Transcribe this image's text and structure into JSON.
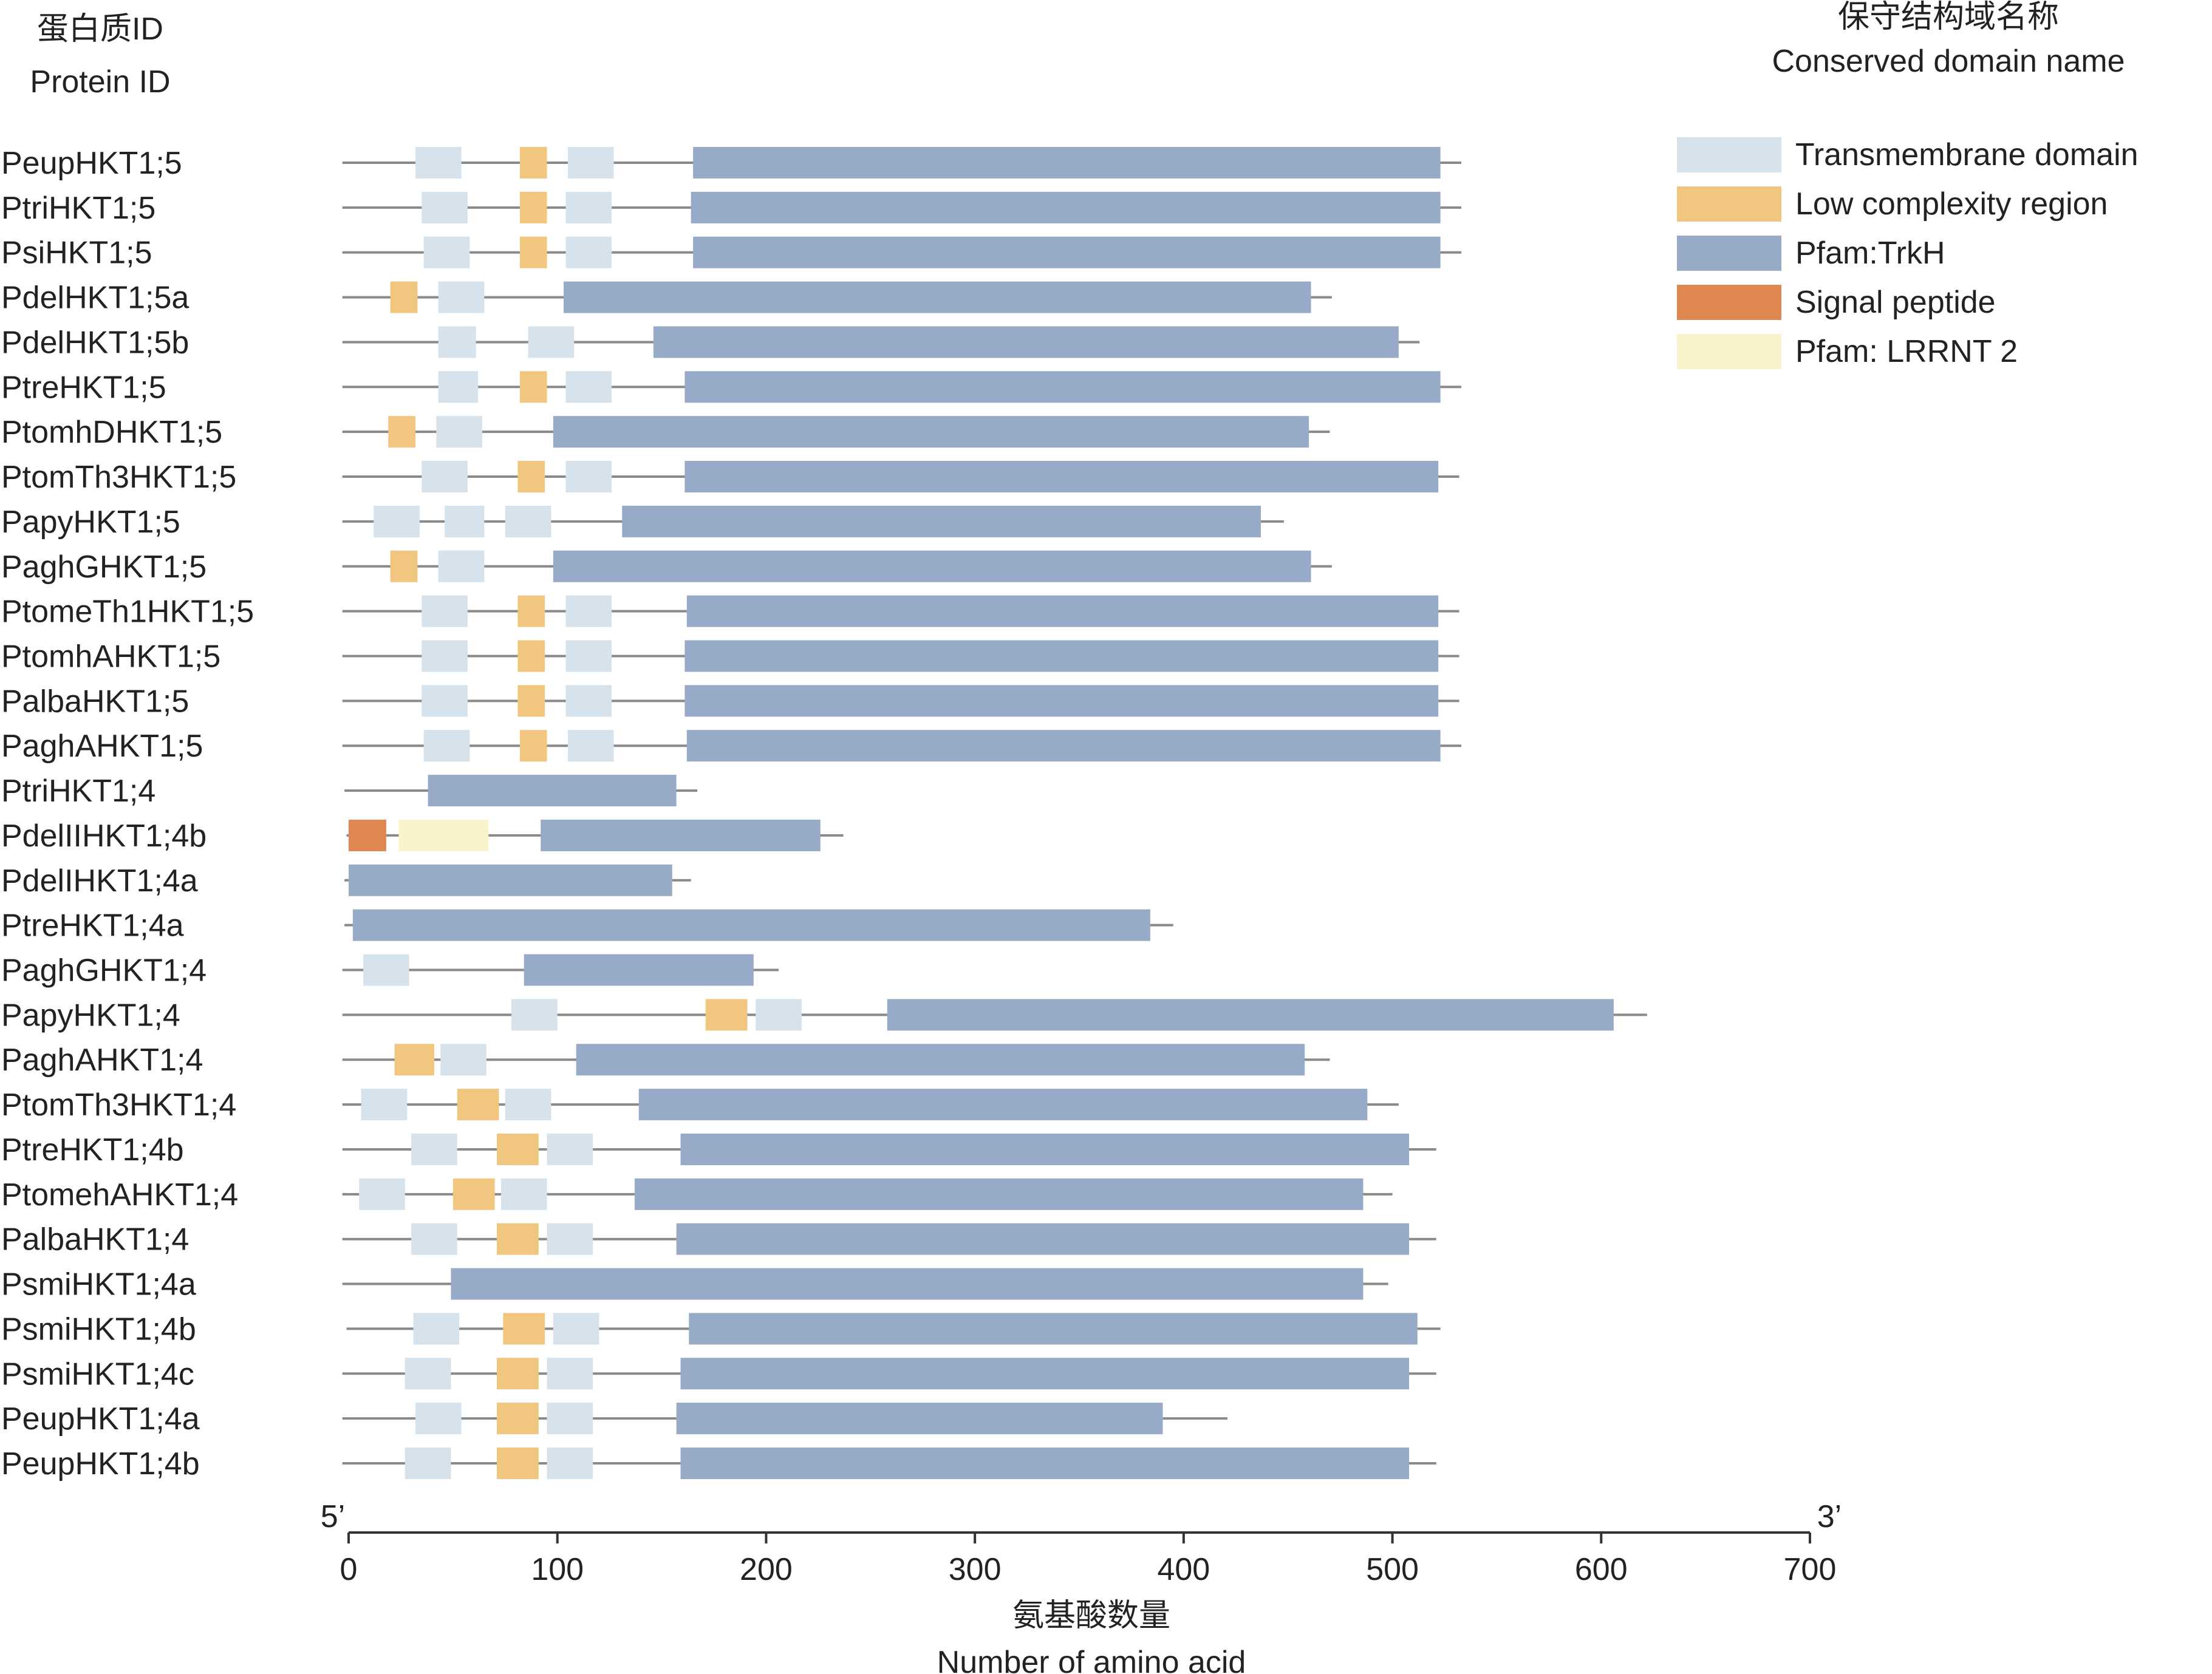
{
  "header": {
    "protein_id_zh": "蛋白质ID",
    "protein_id_en": "Protein ID",
    "domain_name_zh": "保守结构域名称",
    "domain_name_en": "Conserved domain name"
  },
  "legend": [
    {
      "key": "tm",
      "label": "Transmembrane domain",
      "color": "#d6e2ec"
    },
    {
      "key": "lcr",
      "label": "Low complexity region",
      "color": "#f1c67f"
    },
    {
      "key": "trkh",
      "label": "Pfam:TrkH",
      "color": "#97abc9"
    },
    {
      "key": "sig",
      "label": "Signal peptide",
      "color": "#df8751"
    },
    {
      "key": "lrr",
      "label": "Pfam: LRRNT 2",
      "color": "#f8f3cb"
    }
  ],
  "axis": {
    "min": 0,
    "max": 700,
    "ticks": [
      0,
      100,
      200,
      300,
      400,
      500,
      600,
      700
    ],
    "left_end_label": "5’",
    "right_end_label": "3’",
    "label_zh": "氨基酸数量",
    "label_en": "Number of amino acid"
  },
  "proteins": [
    {
      "id": "PeupHKT1;5",
      "start": -3,
      "length": 533,
      "domains": [
        {
          "t": "tm",
          "s": 32,
          "e": 54
        },
        {
          "t": "lcr",
          "s": 82,
          "e": 95
        },
        {
          "t": "tm",
          "s": 105,
          "e": 127
        },
        {
          "t": "trkh",
          "s": 165,
          "e": 523
        }
      ]
    },
    {
      "id": "PtriHKT1;5",
      "start": -3,
      "length": 533,
      "domains": [
        {
          "t": "tm",
          "s": 35,
          "e": 57
        },
        {
          "t": "lcr",
          "s": 82,
          "e": 95
        },
        {
          "t": "tm",
          "s": 104,
          "e": 126
        },
        {
          "t": "trkh",
          "s": 164,
          "e": 523
        }
      ]
    },
    {
      "id": "PsiHKT1;5",
      "start": -3,
      "length": 533,
      "domains": [
        {
          "t": "tm",
          "s": 36,
          "e": 58
        },
        {
          "t": "lcr",
          "s": 82,
          "e": 95
        },
        {
          "t": "tm",
          "s": 104,
          "e": 126
        },
        {
          "t": "trkh",
          "s": 165,
          "e": 523
        }
      ]
    },
    {
      "id": "PdelHKT1;5a",
      "start": -3,
      "length": 471,
      "domains": [
        {
          "t": "lcr",
          "s": 20,
          "e": 33
        },
        {
          "t": "tm",
          "s": 43,
          "e": 65
        },
        {
          "t": "trkh",
          "s": 103,
          "e": 461
        }
      ]
    },
    {
      "id": "PdelHKT1;5b",
      "start": -3,
      "length": 513,
      "domains": [
        {
          "t": "tm",
          "s": 43,
          "e": 61
        },
        {
          "t": "tm",
          "s": 86,
          "e": 108
        },
        {
          "t": "trkh",
          "s": 146,
          "e": 503
        }
      ]
    },
    {
      "id": "PtreHKT1;5",
      "start": -3,
      "length": 533,
      "domains": [
        {
          "t": "tm",
          "s": 43,
          "e": 62
        },
        {
          "t": "lcr",
          "s": 82,
          "e": 95
        },
        {
          "t": "tm",
          "s": 104,
          "e": 126
        },
        {
          "t": "trkh",
          "s": 161,
          "e": 523
        }
      ]
    },
    {
      "id": "PtomhDHKT1;5",
      "start": -3,
      "length": 470,
      "domains": [
        {
          "t": "lcr",
          "s": 19,
          "e": 32
        },
        {
          "t": "tm",
          "s": 42,
          "e": 64
        },
        {
          "t": "trkh",
          "s": 98,
          "e": 460
        }
      ]
    },
    {
      "id": "PtomTh3HKT1;5",
      "start": -3,
      "length": 532,
      "domains": [
        {
          "t": "tm",
          "s": 35,
          "e": 57
        },
        {
          "t": "lcr",
          "s": 81,
          "e": 94
        },
        {
          "t": "tm",
          "s": 104,
          "e": 126
        },
        {
          "t": "trkh",
          "s": 161,
          "e": 522
        }
      ]
    },
    {
      "id": "PapyHKT1;5",
      "start": -3,
      "length": 448,
      "domains": [
        {
          "t": "tm",
          "s": 12,
          "e": 34
        },
        {
          "t": "tm",
          "s": 46,
          "e": 65
        },
        {
          "t": "tm",
          "s": 75,
          "e": 97
        },
        {
          "t": "trkh",
          "s": 131,
          "e": 437
        }
      ]
    },
    {
      "id": "PaghGHKT1;5",
      "start": -3,
      "length": 471,
      "domains": [
        {
          "t": "lcr",
          "s": 20,
          "e": 33
        },
        {
          "t": "tm",
          "s": 43,
          "e": 65
        },
        {
          "t": "trkh",
          "s": 98,
          "e": 461
        }
      ]
    },
    {
      "id": "PtomeTh1HKT1;5",
      "start": -3,
      "length": 532,
      "domains": [
        {
          "t": "tm",
          "s": 35,
          "e": 57
        },
        {
          "t": "lcr",
          "s": 81,
          "e": 94
        },
        {
          "t": "tm",
          "s": 104,
          "e": 126
        },
        {
          "t": "trkh",
          "s": 162,
          "e": 522
        }
      ]
    },
    {
      "id": "PtomhAHKT1;5",
      "start": -3,
      "length": 532,
      "domains": [
        {
          "t": "tm",
          "s": 35,
          "e": 57
        },
        {
          "t": "lcr",
          "s": 81,
          "e": 94
        },
        {
          "t": "tm",
          "s": 104,
          "e": 126
        },
        {
          "t": "trkh",
          "s": 161,
          "e": 522
        }
      ]
    },
    {
      "id": "PalbaHKT1;5",
      "start": -3,
      "length": 532,
      "domains": [
        {
          "t": "tm",
          "s": 35,
          "e": 57
        },
        {
          "t": "lcr",
          "s": 81,
          "e": 94
        },
        {
          "t": "tm",
          "s": 104,
          "e": 126
        },
        {
          "t": "trkh",
          "s": 161,
          "e": 522
        }
      ]
    },
    {
      "id": "PaghAHKT1;5",
      "start": -3,
      "length": 533,
      "domains": [
        {
          "t": "tm",
          "s": 36,
          "e": 58
        },
        {
          "t": "lcr",
          "s": 82,
          "e": 95
        },
        {
          "t": "tm",
          "s": 105,
          "e": 127
        },
        {
          "t": "trkh",
          "s": 162,
          "e": 523
        }
      ]
    },
    {
      "id": "PtriHKT1;4",
      "start": -2,
      "length": 167,
      "domains": [
        {
          "t": "trkh",
          "s": 38,
          "e": 157
        }
      ]
    },
    {
      "id": "PdelIIHKT1;4b",
      "start": -1,
      "length": 237,
      "domains": [
        {
          "t": "sig",
          "s": 0,
          "e": 18
        },
        {
          "t": "lrr",
          "s": 24,
          "e": 67
        },
        {
          "t": "trkh",
          "s": 92,
          "e": 226
        }
      ]
    },
    {
      "id": "PdelIHKT1;4a",
      "start": -2,
      "length": 164,
      "domains": [
        {
          "t": "trkh",
          "s": 0,
          "e": 155
        }
      ]
    },
    {
      "id": "PtreHKT1;4a",
      "start": -2,
      "length": 395,
      "domains": [
        {
          "t": "trkh",
          "s": 2,
          "e": 384
        }
      ]
    },
    {
      "id": "PaghGHKT1;4",
      "start": -3,
      "length": 206,
      "domains": [
        {
          "t": "tm",
          "s": 7,
          "e": 29
        },
        {
          "t": "trkh",
          "s": 84,
          "e": 194
        }
      ]
    },
    {
      "id": "PapyHKT1;4",
      "start": -3,
      "length": 622,
      "domains": [
        {
          "t": "tm",
          "s": 78,
          "e": 100
        },
        {
          "t": "lcr",
          "s": 171,
          "e": 191
        },
        {
          "t": "tm",
          "s": 195,
          "e": 217
        },
        {
          "t": "trkh",
          "s": 258,
          "e": 606
        }
      ]
    },
    {
      "id": "PaghAHKT1;4",
      "start": -3,
      "length": 470,
      "domains": [
        {
          "t": "lcr",
          "s": 22,
          "e": 41
        },
        {
          "t": "tm",
          "s": 44,
          "e": 66
        },
        {
          "t": "trkh",
          "s": 109,
          "e": 458
        }
      ]
    },
    {
      "id": "PtomTh3HKT1;4",
      "start": -3,
      "length": 503,
      "domains": [
        {
          "t": "tm",
          "s": 6,
          "e": 28
        },
        {
          "t": "lcr",
          "s": 52,
          "e": 72
        },
        {
          "t": "tm",
          "s": 75,
          "e": 97
        },
        {
          "t": "trkh",
          "s": 139,
          "e": 488
        }
      ]
    },
    {
      "id": "PtreHKT1;4b",
      "start": -3,
      "length": 521,
      "domains": [
        {
          "t": "tm",
          "s": 30,
          "e": 52
        },
        {
          "t": "lcr",
          "s": 71,
          "e": 91
        },
        {
          "t": "tm",
          "s": 95,
          "e": 117
        },
        {
          "t": "trkh",
          "s": 159,
          "e": 508
        }
      ]
    },
    {
      "id": "PtomehAHKT1;4",
      "start": -3,
      "length": 500,
      "domains": [
        {
          "t": "tm",
          "s": 5,
          "e": 27
        },
        {
          "t": "lcr",
          "s": 50,
          "e": 70
        },
        {
          "t": "tm",
          "s": 73,
          "e": 95
        },
        {
          "t": "trkh",
          "s": 137,
          "e": 486
        }
      ]
    },
    {
      "id": "PalbaHKT1;4",
      "start": -3,
      "length": 521,
      "domains": [
        {
          "t": "tm",
          "s": 30,
          "e": 52
        },
        {
          "t": "lcr",
          "s": 71,
          "e": 91
        },
        {
          "t": "tm",
          "s": 95,
          "e": 117
        },
        {
          "t": "trkh",
          "s": 157,
          "e": 508
        }
      ]
    },
    {
      "id": "PsmiHKT1;4a",
      "start": -3,
      "length": 498,
      "domains": [
        {
          "t": "trkh",
          "s": 49,
          "e": 486
        }
      ]
    },
    {
      "id": "PsmiHKT1;4b",
      "start": -1,
      "length": 523,
      "domains": [
        {
          "t": "tm",
          "s": 31,
          "e": 53
        },
        {
          "t": "lcr",
          "s": 74,
          "e": 94
        },
        {
          "t": "tm",
          "s": 98,
          "e": 120
        },
        {
          "t": "trkh",
          "s": 163,
          "e": 512
        }
      ]
    },
    {
      "id": "PsmiHKT1;4c",
      "start": -3,
      "length": 521,
      "domains": [
        {
          "t": "tm",
          "s": 27,
          "e": 49
        },
        {
          "t": "lcr",
          "s": 71,
          "e": 91
        },
        {
          "t": "tm",
          "s": 95,
          "e": 117
        },
        {
          "t": "trkh",
          "s": 159,
          "e": 508
        }
      ]
    },
    {
      "id": "PeupHKT1;4a",
      "start": -3,
      "length": 421,
      "domains": [
        {
          "t": "tm",
          "s": 32,
          "e": 54
        },
        {
          "t": "lcr",
          "s": 71,
          "e": 91
        },
        {
          "t": "tm",
          "s": 95,
          "e": 117
        },
        {
          "t": "trkh",
          "s": 157,
          "e": 390
        }
      ]
    },
    {
      "id": "PeupHKT1;4b",
      "start": -3,
      "length": 521,
      "domains": [
        {
          "t": "tm",
          "s": 27,
          "e": 49
        },
        {
          "t": "lcr",
          "s": 71,
          "e": 91
        },
        {
          "t": "tm",
          "s": 95,
          "e": 117
        },
        {
          "t": "trkh",
          "s": 159,
          "e": 508
        }
      ]
    }
  ]
}
